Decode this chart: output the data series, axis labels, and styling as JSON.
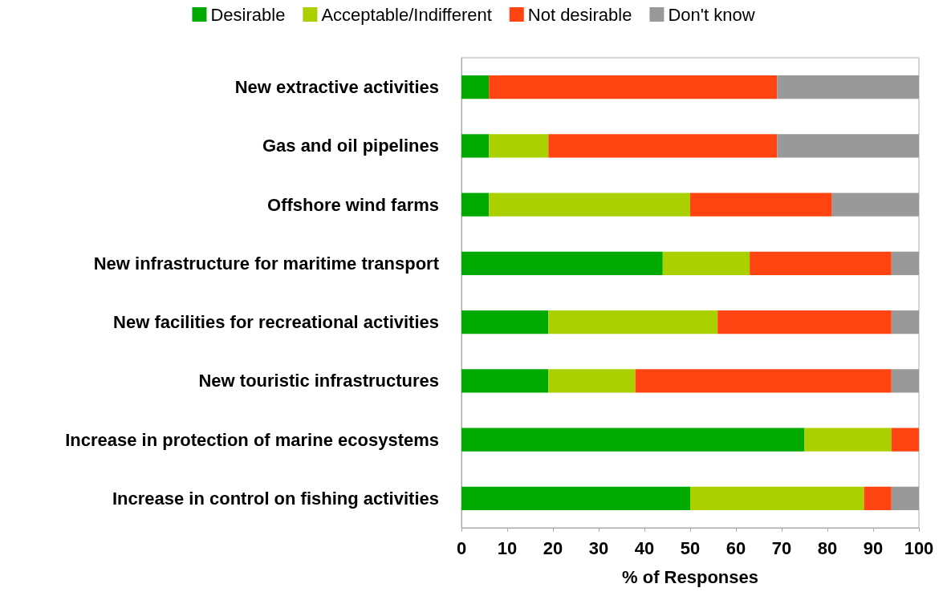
{
  "chart_data": {
    "type": "bar",
    "orientation": "horizontal",
    "stacked": true,
    "xlabel": "% of Responses",
    "categories": [
      "New extractive activities",
      "Gas and oil pipelines",
      "Offshore wind farms",
      "New infrastructure for maritime transport",
      "New facilities for recreational activities",
      "New touristic infrastructures",
      "Increase in protection of marine ecosystems",
      "Increase in control on fishing activities"
    ],
    "series": [
      {
        "name": "Desirable",
        "color": "#00aa00",
        "values": [
          6,
          6,
          6,
          44,
          19,
          19,
          75,
          50
        ]
      },
      {
        "name": "Acceptable/Indifferent",
        "color": "#aad000",
        "values": [
          0,
          13,
          44,
          19,
          37,
          19,
          19,
          38
        ]
      },
      {
        "name": "Not desirable",
        "color": "#ff4411",
        "values": [
          63,
          50,
          31,
          31,
          38,
          56,
          6,
          6
        ]
      },
      {
        "name": "Don't know",
        "color": "#999999",
        "values": [
          31,
          31,
          19,
          6,
          6,
          6,
          0,
          6
        ]
      }
    ],
    "xlim": [
      0,
      100
    ],
    "xticks": [
      0,
      10,
      20,
      30,
      40,
      50,
      60,
      70,
      80,
      90,
      100
    ],
    "grid": false,
    "legend": "top"
  }
}
